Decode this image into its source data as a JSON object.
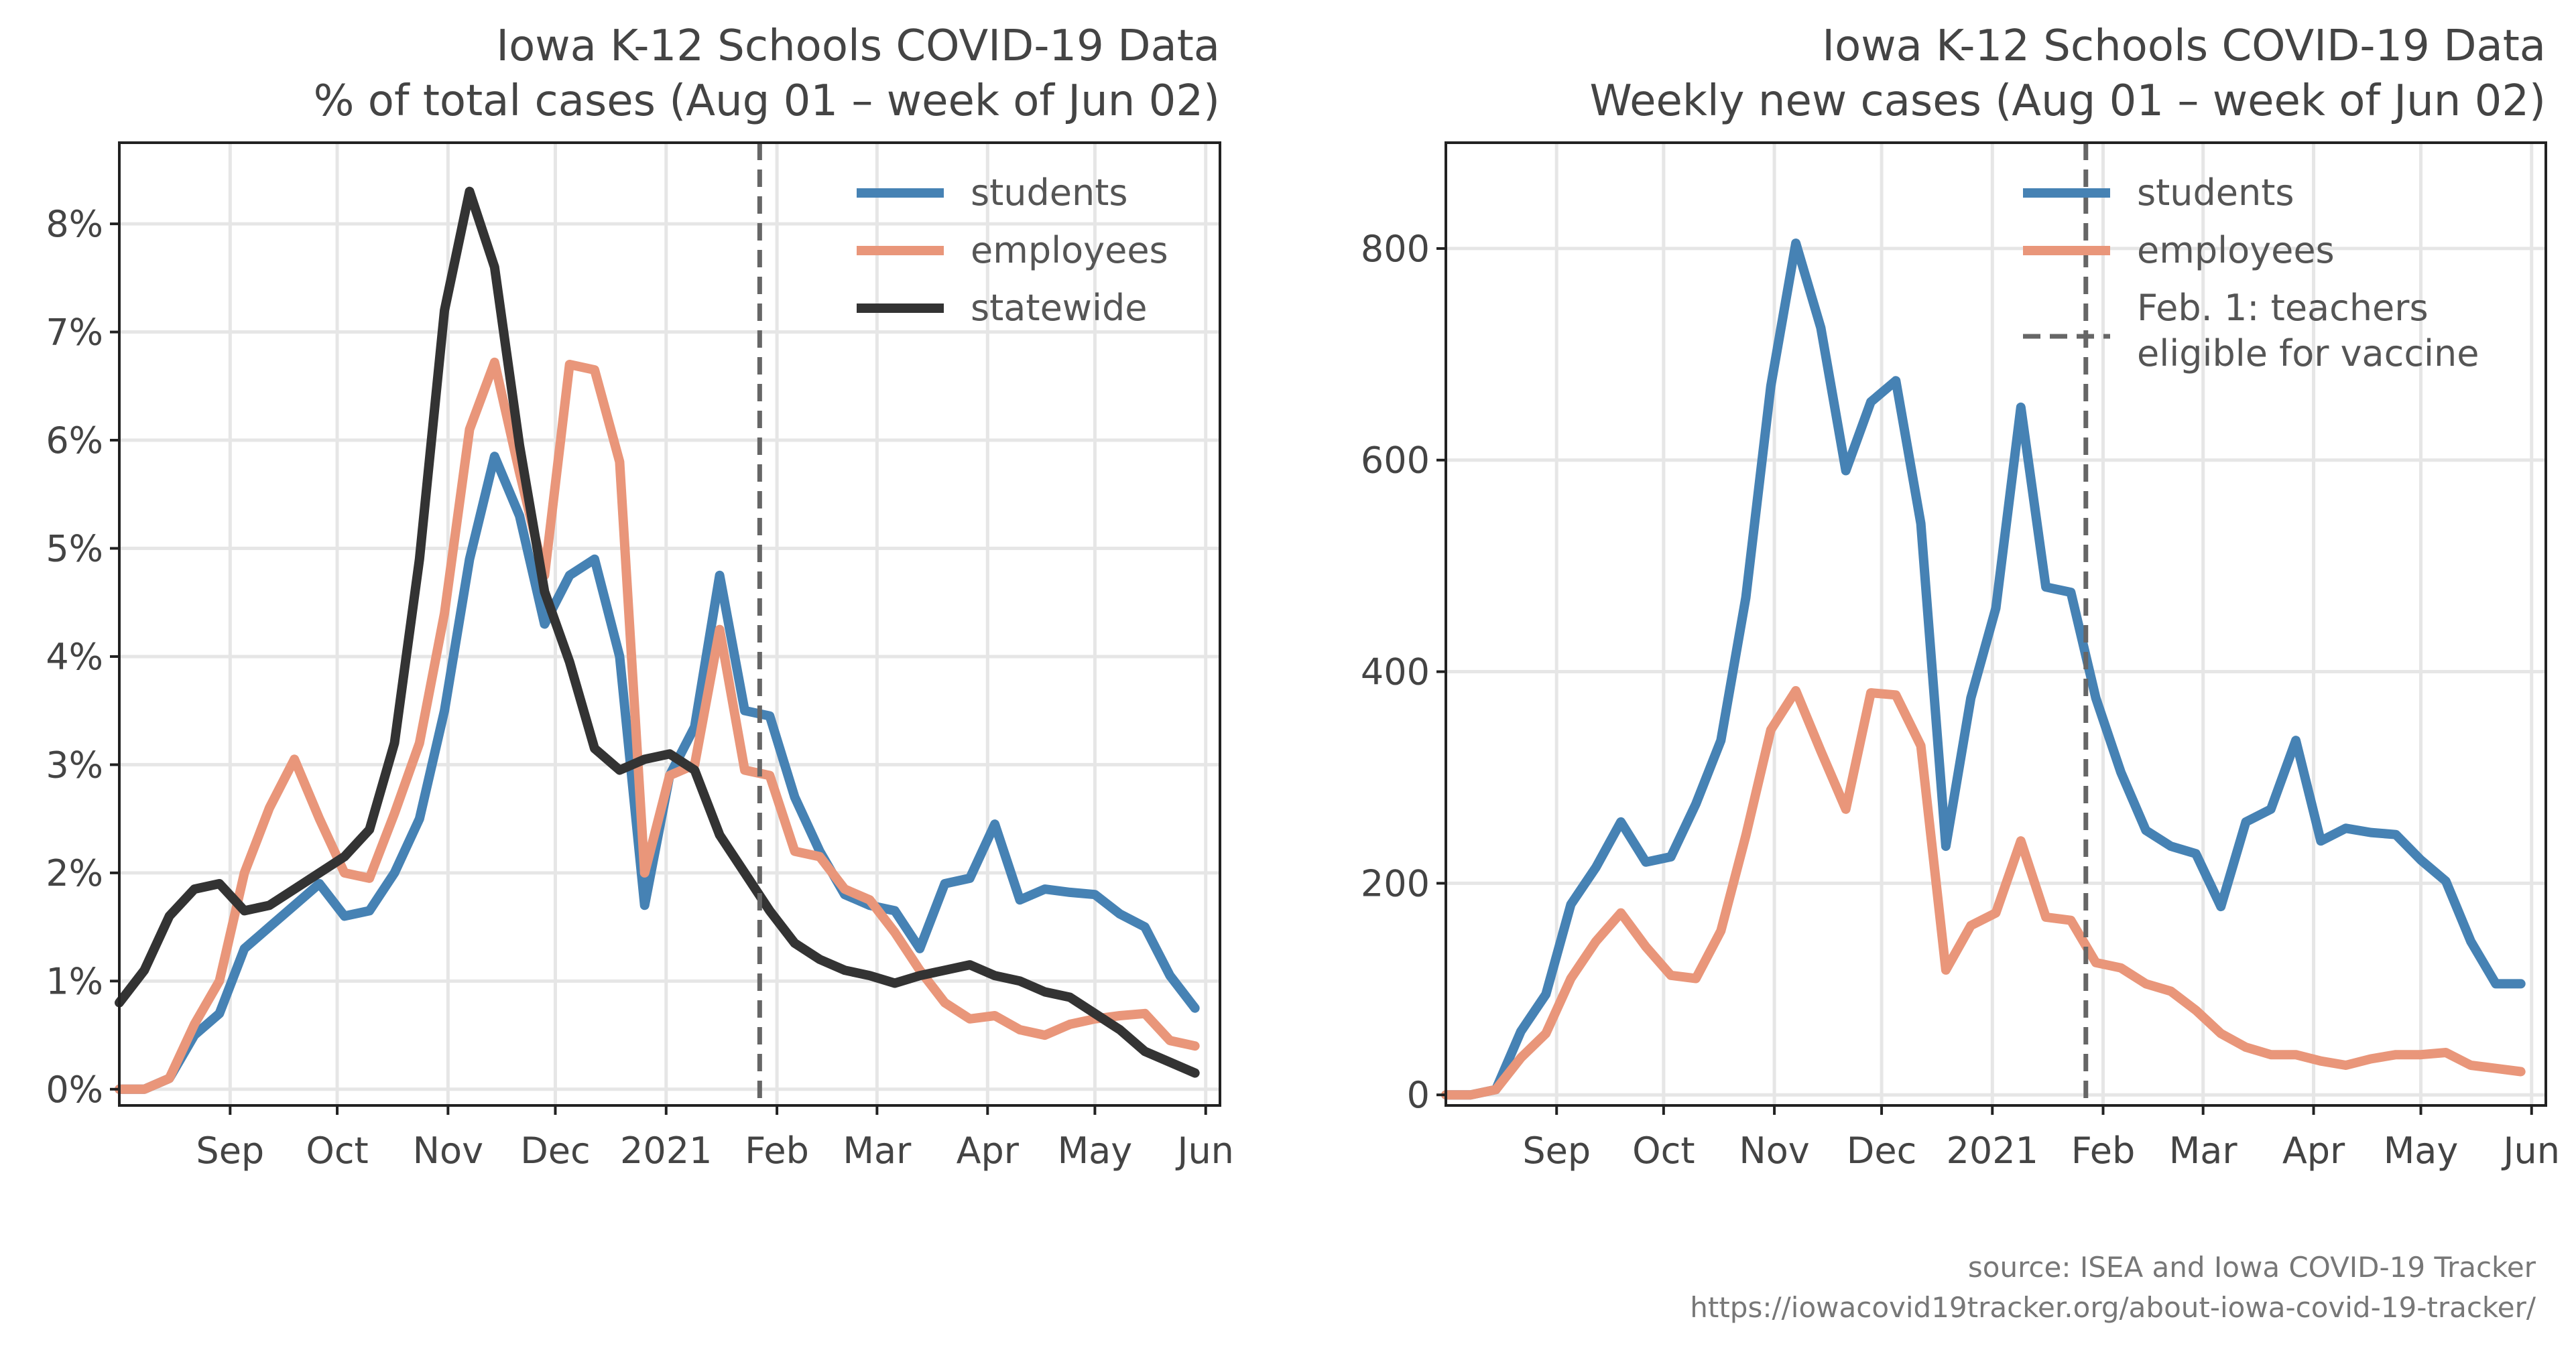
{
  "chart_data": [
    {
      "type": "line",
      "title": "Iowa K-12 Schools COVID-19 Data",
      "subtitle": "% of total cases (Aug 01 – week of Jun 02)",
      "x_tick_labels": [
        "Sep",
        "Oct",
        "Nov",
        "Dec",
        "2021",
        "Feb",
        "Mar",
        "Apr",
        "May",
        "Jun"
      ],
      "y_tick_labels": [
        "0%",
        "1%",
        "2%",
        "3%",
        "4%",
        "5%",
        "6%",
        "7%",
        "8%"
      ],
      "y_ticks": [
        0,
        1,
        2,
        3,
        4,
        5,
        6,
        7,
        8
      ],
      "ylim": [
        -0.15,
        8.75
      ],
      "xlim_weeks": [
        0,
        44
      ],
      "grid": true,
      "legend_position": "top-right",
      "vline": {
        "week": 25.6,
        "style": "dashed",
        "color": "#666666"
      },
      "series": [
        {
          "name": "students",
          "color": "#4682b4",
          "values": [
            0.0,
            0.0,
            0.1,
            0.5,
            0.7,
            1.3,
            1.5,
            1.7,
            1.9,
            1.6,
            1.65,
            2.0,
            2.5,
            3.5,
            4.9,
            5.85,
            5.3,
            4.3,
            4.75,
            4.9,
            4.0,
            1.7,
            2.9,
            3.35,
            4.75,
            3.5,
            3.45,
            2.7,
            2.2,
            1.8,
            1.7,
            1.65,
            1.3,
            1.9,
            1.95,
            2.45,
            1.75,
            1.85,
            1.82,
            1.8,
            1.62,
            1.5,
            1.05,
            0.75
          ]
        },
        {
          "name": "employees",
          "color": "#e9967a",
          "values": [
            0.0,
            0.0,
            0.1,
            0.6,
            1.0,
            2.0,
            2.6,
            3.05,
            2.5,
            2.0,
            1.95,
            2.55,
            3.2,
            4.4,
            6.1,
            6.72,
            5.7,
            4.75,
            6.7,
            6.65,
            5.8,
            2.0,
            2.9,
            3.0,
            4.25,
            2.95,
            2.9,
            2.2,
            2.15,
            1.85,
            1.75,
            1.45,
            1.1,
            0.8,
            0.65,
            0.68,
            0.55,
            0.5,
            0.6,
            0.65,
            0.68,
            0.7,
            0.45,
            0.4
          ]
        },
        {
          "name": "statewide",
          "color": "#333333",
          "values": [
            0.8,
            1.1,
            1.6,
            1.85,
            1.9,
            1.65,
            1.7,
            1.85,
            2.0,
            2.15,
            2.4,
            3.2,
            4.9,
            7.2,
            8.3,
            7.6,
            5.95,
            4.6,
            3.95,
            3.15,
            2.95,
            3.05,
            3.1,
            2.95,
            2.35,
            2.0,
            1.65,
            1.35,
            1.2,
            1.1,
            1.05,
            0.98,
            1.05,
            1.1,
            1.15,
            1.05,
            1.0,
            0.9,
            0.85,
            0.7,
            0.55,
            0.35,
            0.25,
            0.15
          ]
        }
      ]
    },
    {
      "type": "line",
      "title": "Iowa K-12 Schools COVID-19 Data",
      "subtitle": "Weekly new cases (Aug 01 – week of Jun 02)",
      "x_tick_labels": [
        "Sep",
        "Oct",
        "Nov",
        "Dec",
        "2021",
        "Feb",
        "Mar",
        "Apr",
        "May",
        "Jun"
      ],
      "y_tick_labels": [
        "0",
        "200",
        "400",
        "600",
        "800"
      ],
      "y_ticks": [
        0,
        200,
        400,
        600,
        800
      ],
      "ylim": [
        -10,
        900
      ],
      "xlim_weeks": [
        0,
        44
      ],
      "grid": true,
      "legend_position": "top-right",
      "vline": {
        "week": 25.6,
        "style": "dashed",
        "color": "#666666",
        "label_line1": "Feb. 1: teachers",
        "label_line2": "eligible for vaccine"
      },
      "series": [
        {
          "name": "students",
          "color": "#4682b4",
          "values": [
            0,
            0,
            5,
            60,
            95,
            180,
            215,
            258,
            220,
            225,
            275,
            335,
            470,
            670,
            805,
            725,
            590,
            655,
            675,
            540,
            235,
            375,
            460,
            650,
            480,
            475,
            375,
            305,
            250,
            235,
            228,
            178,
            258,
            270,
            335,
            240,
            252,
            248,
            246,
            222,
            202,
            145,
            105,
            105
          ]
        },
        {
          "name": "employees",
          "color": "#e9967a",
          "values": [
            0,
            0,
            5,
            35,
            58,
            110,
            145,
            172,
            140,
            113,
            110,
            155,
            245,
            345,
            382,
            325,
            270,
            380,
            378,
            330,
            118,
            160,
            172,
            240,
            168,
            165,
            125,
            120,
            105,
            98,
            80,
            58,
            45,
            38,
            38,
            32,
            28,
            34,
            38,
            38,
            40,
            28,
            25,
            22
          ]
        }
      ]
    }
  ],
  "source": {
    "line1": "source: ISEA and Iowa COVID-19 Tracker",
    "line2": "https://iowacovid19tracker.org/about-iowa-covid-19-tracker/"
  }
}
